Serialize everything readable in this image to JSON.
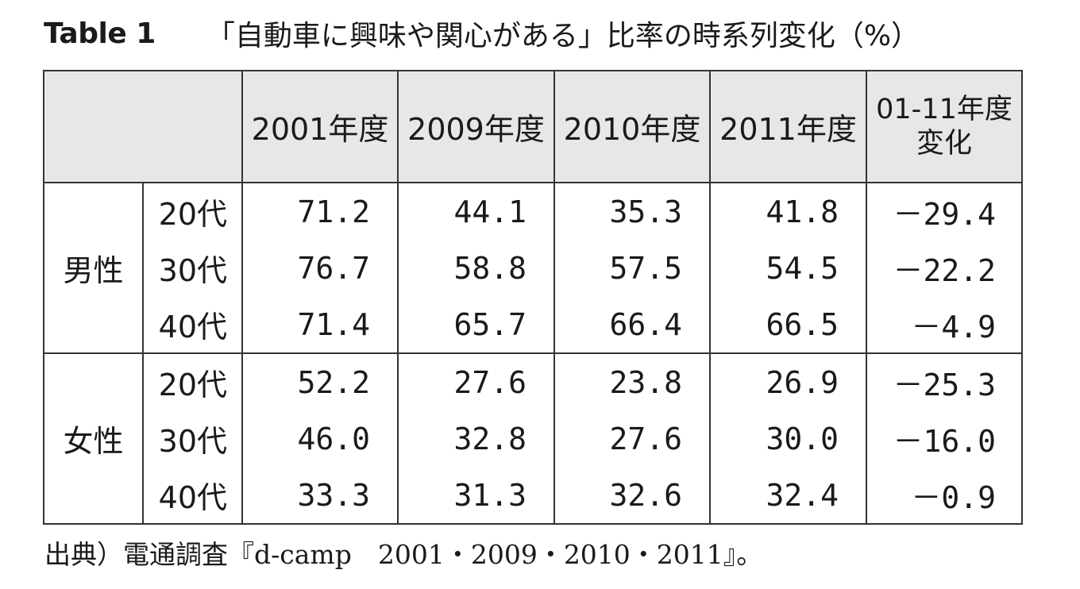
{
  "title": {
    "label": "Table 1",
    "text": "「自動車に興味や関心がある」比率の時系列変化（%）"
  },
  "table": {
    "columns": [
      "2001年度",
      "2009年度",
      "2010年度",
      "2011年度"
    ],
    "change_header": [
      "01-11年度",
      "変化"
    ],
    "groups": [
      {
        "sex": "男性",
        "rows": [
          {
            "age": "20代",
            "values": [
              "71.2",
              "44.1",
              "35.3",
              "41.8"
            ],
            "change": "－29.4"
          },
          {
            "age": "30代",
            "values": [
              "76.7",
              "58.8",
              "57.5",
              "54.5"
            ],
            "change": "－22.2"
          },
          {
            "age": "40代",
            "values": [
              "71.4",
              "65.7",
              "66.4",
              "66.5"
            ],
            "change": "－4.9"
          }
        ]
      },
      {
        "sex": "女性",
        "rows": [
          {
            "age": "20代",
            "values": [
              "52.2",
              "27.6",
              "23.8",
              "26.9"
            ],
            "change": "－25.3"
          },
          {
            "age": "30代",
            "values": [
              "46.0",
              "32.8",
              "27.6",
              "30.0"
            ],
            "change": "－16.0"
          },
          {
            "age": "40代",
            "values": [
              "33.3",
              "31.3",
              "32.6",
              "32.4"
            ],
            "change": "－0.9"
          }
        ]
      }
    ]
  },
  "source": "出典）電通調査『d-camp　2001・2009・2010・2011』。",
  "colors": {
    "header_bg": "#e7e7e7",
    "border": "#333333",
    "text": "#1a1a1a"
  }
}
